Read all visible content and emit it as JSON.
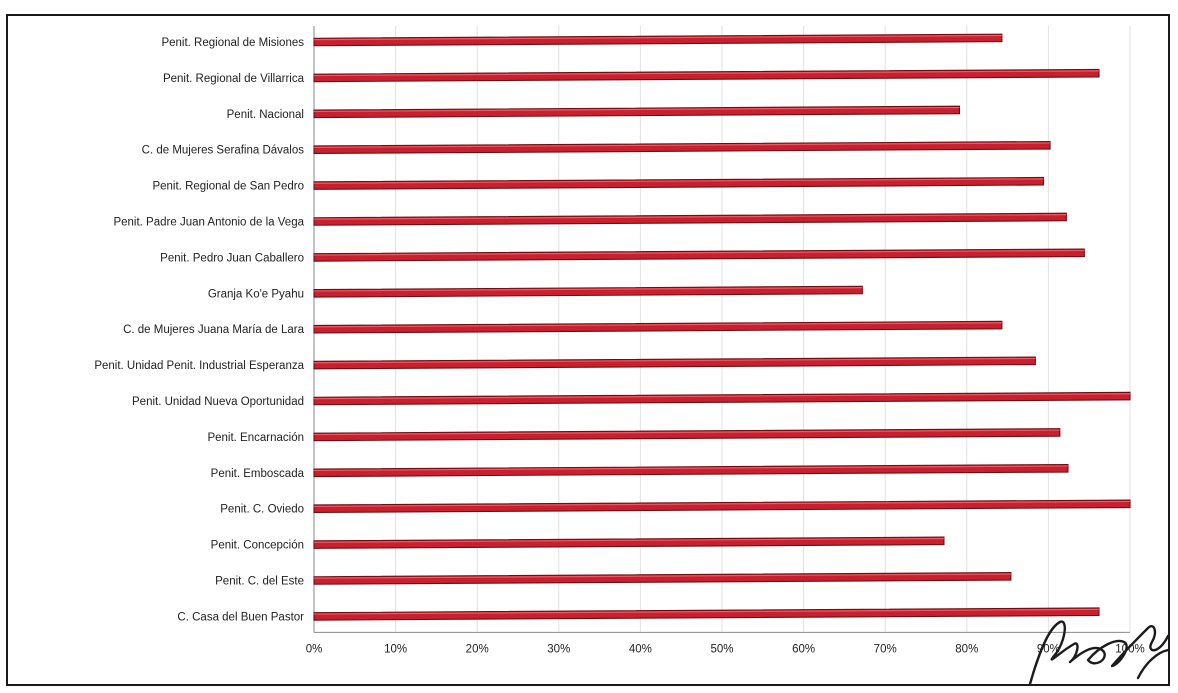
{
  "chart_data": {
    "type": "bar",
    "orientation": "horizontal",
    "title": "",
    "xlabel": "",
    "ylabel": "",
    "xlim": [
      0,
      1
    ],
    "grid": true,
    "legend": "none",
    "bar_color": "#c8202e",
    "bar_shadow_color": "#6b0e14",
    "categories": [
      "Penit. Regional de Misiones",
      "Penit. Regional de Villarrica",
      "Penit. Nacional",
      "C. de Mujeres Serafina Dávalos",
      "Penit. Regional de San Pedro",
      "Penit. Padre Juan Antonio de la Vega",
      "Penit. Pedro Juan Caballero",
      "Granja Ko'e Pyahu",
      "C. de Mujeres Juana María de Lara",
      "Penit. Unidad Penit. Industrial Esperanza",
      "Penit. Unidad Nueva Oportunidad",
      "Penit. Encarnación",
      "Penit. Emboscada",
      "Penit. C. Oviedo",
      "Penit. Concepción",
      "Penit. C. del Este",
      "C. Casa del Buen Pastor"
    ],
    "values": [
      0.843,
      0.962,
      0.791,
      0.902,
      0.894,
      0.922,
      0.944,
      0.672,
      0.843,
      0.884,
      1.0,
      0.914,
      0.924,
      1.0,
      0.772,
      0.854,
      0.962
    ],
    "tick_labels": [
      "0%",
      "10%",
      "20%",
      "30%",
      "40%",
      "50%",
      "60%",
      "70%",
      "80%",
      "90%",
      "100%"
    ]
  }
}
